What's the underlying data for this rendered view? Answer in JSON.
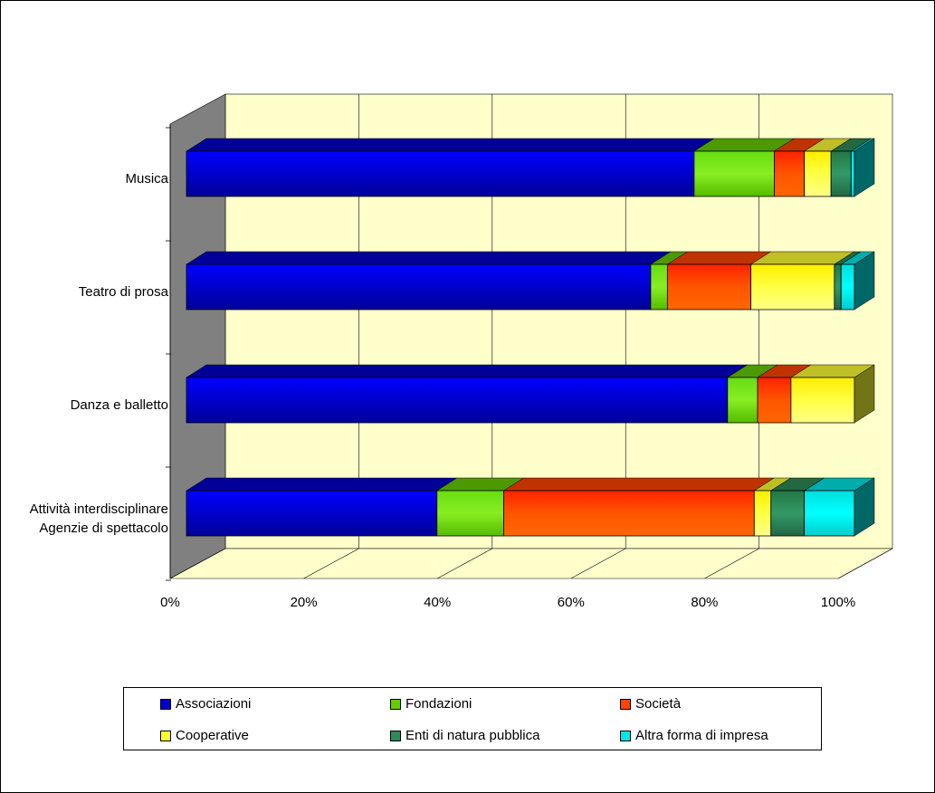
{
  "chart_data": {
    "type": "bar",
    "orientation": "horizontal",
    "stacked": "percent",
    "three_d": true,
    "title": "",
    "xlabel": "",
    "ylabel": "",
    "categories": [
      "Musica",
      "Teatro di prosa",
      "Danza e balletto",
      "Attività interdisciplinare\nAgenzie di spettacolo"
    ],
    "series": [
      {
        "name": "Associazioni",
        "color": "#0000cc",
        "values": [
          76,
          69.5,
          81,
          37.5
        ]
      },
      {
        "name": "Fondazioni",
        "color": "#66cc00",
        "values": [
          12,
          2.5,
          4.5,
          10
        ]
      },
      {
        "name": "Società",
        "color": "#ff4400",
        "values": [
          4.5,
          12.5,
          5,
          37.5
        ]
      },
      {
        "name": "Cooperative",
        "color": "#ffff33",
        "values": [
          4,
          12.5,
          9.5,
          2.5
        ]
      },
      {
        "name": "Enti di natura pubblica",
        "color": "#2e8b57",
        "values": [
          3,
          1,
          0,
          5
        ]
      },
      {
        "name": "Altra forma di impresa",
        "color": "#00e5e5",
        "values": [
          0.5,
          2,
          0,
          7.5
        ]
      }
    ],
    "x_ticks": [
      "0%",
      "20%",
      "40%",
      "60%",
      "80%",
      "100%"
    ],
    "xlim": [
      0,
      100
    ],
    "grid": true,
    "legend": "bottom"
  }
}
